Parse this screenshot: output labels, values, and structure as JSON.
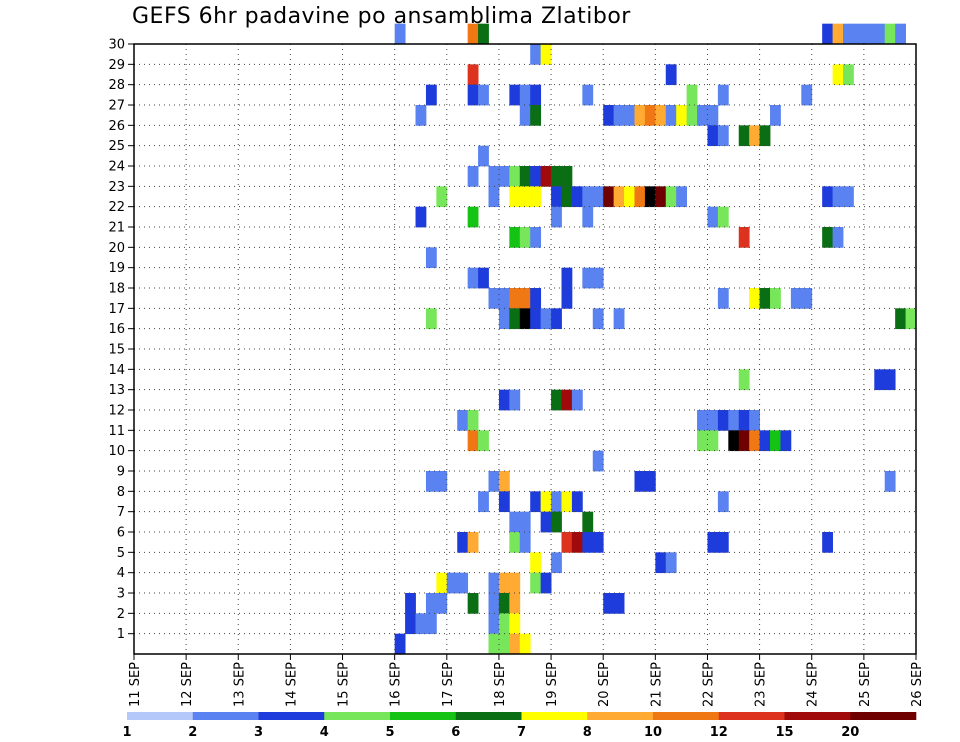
{
  "chart_data": {
    "type": "heatmap",
    "title": "GEFS 6hr padavine po ansamblima Zlatibor",
    "xlabel": "",
    "ylabel": "",
    "x_tick_labels": [
      "11 SEP",
      "12 SEP",
      "13 SEP",
      "14 SEP",
      "15 SEP",
      "16 SEP",
      "17 SEP",
      "18 SEP",
      "19 SEP",
      "20 SEP",
      "21 SEP",
      "22 SEP",
      "23 SEP",
      "24 SEP",
      "25 SEP",
      "26 SEP"
    ],
    "y_tick_labels": [
      "1",
      "2",
      "3",
      "4",
      "5",
      "6",
      "7",
      "8",
      "9",
      "10",
      "11",
      "12",
      "13",
      "14",
      "15",
      "16",
      "17",
      "18",
      "19",
      "20",
      "21",
      "22",
      "23",
      "24",
      "25",
      "26",
      "27",
      "28",
      "29",
      "30"
    ],
    "x_range_days": [
      11,
      26
    ],
    "y_range": [
      0,
      30
    ],
    "grid": true,
    "colorbar": {
      "labels": [
        "1",
        "2",
        "3",
        "4",
        "5",
        "6",
        "7",
        "8",
        "10",
        "12",
        "15",
        "20"
      ],
      "colors": [
        "#b4c8fa",
        "#5a82f0",
        "#1e3cdc",
        "#78e65a",
        "#14c314",
        "#0a6e14",
        "#ffff00",
        "#ffaa32",
        "#f07814",
        "#dc321e",
        "#a00a0a",
        "#6e0000"
      ]
    },
    "cells_comment_free": true,
    "cells": [
      [
        16.0,
        30,
        1
      ],
      [
        17.4,
        30,
        8
      ],
      [
        17.6,
        30,
        5
      ],
      [
        24.2,
        30,
        2
      ],
      [
        24.4,
        30,
        7
      ],
      [
        24.6,
        30,
        1
      ],
      [
        24.8,
        30,
        1
      ],
      [
        25.0,
        30,
        1
      ],
      [
        25.2,
        30,
        1
      ],
      [
        25.4,
        30,
        3
      ],
      [
        25.6,
        30,
        1
      ],
      [
        18.6,
        29,
        1
      ],
      [
        18.8,
        29,
        6
      ],
      [
        17.4,
        28,
        9
      ],
      [
        21.2,
        28,
        2
      ],
      [
        24.4,
        28,
        6
      ],
      [
        24.6,
        28,
        3
      ],
      [
        16.6,
        27,
        2
      ],
      [
        17.4,
        27,
        2
      ],
      [
        17.6,
        27,
        1
      ],
      [
        18.2,
        27,
        2
      ],
      [
        18.4,
        27,
        1
      ],
      [
        18.6,
        27,
        2
      ],
      [
        19.6,
        27,
        1
      ],
      [
        21.6,
        27,
        3
      ],
      [
        22.2,
        27,
        1
      ],
      [
        23.8,
        27,
        1
      ],
      [
        16.4,
        26,
        1
      ],
      [
        18.4,
        26,
        1
      ],
      [
        18.6,
        26,
        5
      ],
      [
        20.0,
        26,
        2
      ],
      [
        20.2,
        26,
        1
      ],
      [
        20.4,
        26,
        1
      ],
      [
        20.6,
        26,
        7
      ],
      [
        20.8,
        26,
        8
      ],
      [
        21.0,
        26,
        7
      ],
      [
        21.2,
        26,
        1
      ],
      [
        21.4,
        26,
        6
      ],
      [
        21.6,
        26,
        3
      ],
      [
        21.8,
        26,
        1
      ],
      [
        22.0,
        26,
        1
      ],
      [
        23.2,
        26,
        1
      ],
      [
        22.0,
        25,
        2
      ],
      [
        22.2,
        25,
        1
      ],
      [
        22.6,
        25,
        5
      ],
      [
        22.8,
        25,
        7
      ],
      [
        23.0,
        25,
        5
      ],
      [
        17.6,
        24,
        1
      ],
      [
        17.4,
        23,
        1
      ],
      [
        17.8,
        23,
        1
      ],
      [
        18.0,
        23,
        1
      ],
      [
        18.2,
        23,
        3
      ],
      [
        18.4,
        23,
        5
      ],
      [
        18.6,
        23,
        2
      ],
      [
        18.8,
        23,
        10
      ],
      [
        19.0,
        23,
        5
      ],
      [
        19.2,
        23,
        5
      ],
      [
        16.8,
        22,
        3
      ],
      [
        17.8,
        22,
        1
      ],
      [
        18.2,
        22,
        6
      ],
      [
        18.4,
        22,
        6
      ],
      [
        18.6,
        22,
        6
      ],
      [
        19.0,
        22,
        2
      ],
      [
        19.2,
        22,
        5
      ],
      [
        19.4,
        22,
        2
      ],
      [
        19.6,
        22,
        1
      ],
      [
        19.8,
        22,
        1
      ],
      [
        20.0,
        22,
        11
      ],
      [
        20.2,
        22,
        7
      ],
      [
        20.4,
        22,
        6
      ],
      [
        20.6,
        22,
        8
      ],
      [
        20.8,
        22,
        12
      ],
      [
        21.0,
        22,
        11
      ],
      [
        21.2,
        22,
        3
      ],
      [
        21.4,
        22,
        1
      ],
      [
        24.2,
        22,
        2
      ],
      [
        24.4,
        22,
        1
      ],
      [
        24.6,
        22,
        1
      ],
      [
        16.4,
        21,
        2
      ],
      [
        17.4,
        21,
        4
      ],
      [
        19.0,
        21,
        1
      ],
      [
        19.6,
        21,
        1
      ],
      [
        22.0,
        21,
        1
      ],
      [
        22.2,
        21,
        3
      ],
      [
        18.2,
        20,
        4
      ],
      [
        18.4,
        20,
        3
      ],
      [
        18.6,
        20,
        1
      ],
      [
        22.6,
        20,
        9
      ],
      [
        24.2,
        20,
        5
      ],
      [
        24.4,
        20,
        1
      ],
      [
        16.6,
        19,
        1
      ],
      [
        17.4,
        18,
        1
      ],
      [
        17.6,
        18,
        2
      ],
      [
        19.2,
        18,
        2
      ],
      [
        19.6,
        18,
        1
      ],
      [
        19.8,
        18,
        1
      ],
      [
        17.8,
        17,
        1
      ],
      [
        18.0,
        17,
        1
      ],
      [
        18.2,
        17,
        8
      ],
      [
        18.4,
        17,
        8
      ],
      [
        18.6,
        17,
        2
      ],
      [
        19.2,
        17,
        2
      ],
      [
        22.2,
        17,
        1
      ],
      [
        22.8,
        17,
        6
      ],
      [
        23.0,
        17,
        5
      ],
      [
        23.2,
        17,
        3
      ],
      [
        23.6,
        17,
        1
      ],
      [
        23.8,
        17,
        1
      ],
      [
        16.6,
        16,
        3
      ],
      [
        18.0,
        16,
        1
      ],
      [
        18.2,
        16,
        5
      ],
      [
        18.4,
        16,
        12
      ],
      [
        18.6,
        16,
        2
      ],
      [
        18.8,
        16,
        1
      ],
      [
        19.0,
        16,
        2
      ],
      [
        19.8,
        16,
        1
      ],
      [
        20.2,
        16,
        1
      ],
      [
        25.6,
        16,
        5
      ],
      [
        25.8,
        16,
        3
      ],
      [
        22.6,
        13,
        3
      ],
      [
        25.2,
        13,
        2
      ],
      [
        25.4,
        13,
        2
      ],
      [
        18.0,
        12,
        2
      ],
      [
        18.2,
        12,
        1
      ],
      [
        19.0,
        12,
        5
      ],
      [
        19.2,
        12,
        10
      ],
      [
        19.4,
        12,
        1
      ],
      [
        17.2,
        11,
        1
      ],
      [
        17.4,
        11,
        3
      ],
      [
        21.8,
        11,
        1
      ],
      [
        22.0,
        11,
        1
      ],
      [
        22.2,
        11,
        2
      ],
      [
        22.4,
        11,
        1
      ],
      [
        22.6,
        11,
        2
      ],
      [
        22.8,
        11,
        1
      ],
      [
        17.4,
        10,
        8
      ],
      [
        17.6,
        10,
        3
      ],
      [
        21.8,
        10,
        3
      ],
      [
        22.0,
        10,
        3
      ],
      [
        22.4,
        10,
        12
      ],
      [
        22.6,
        10,
        11
      ],
      [
        22.8,
        10,
        8
      ],
      [
        23.0,
        10,
        2
      ],
      [
        23.2,
        10,
        4
      ],
      [
        23.4,
        10,
        2
      ],
      [
        19.8,
        9,
        1
      ],
      [
        16.6,
        8,
        1
      ],
      [
        16.8,
        8,
        1
      ],
      [
        17.8,
        8,
        1
      ],
      [
        18.0,
        8,
        7
      ],
      [
        20.6,
        8,
        2
      ],
      [
        20.8,
        8,
        2
      ],
      [
        25.4,
        8,
        1
      ],
      [
        17.6,
        7,
        1
      ],
      [
        18.0,
        7,
        2
      ],
      [
        18.6,
        7,
        2
      ],
      [
        18.8,
        7,
        6
      ],
      [
        19.0,
        7,
        1
      ],
      [
        19.2,
        7,
        6
      ],
      [
        19.4,
        7,
        2
      ],
      [
        22.2,
        7,
        1
      ],
      [
        18.2,
        6,
        1
      ],
      [
        18.4,
        6,
        1
      ],
      [
        18.8,
        6,
        2
      ],
      [
        19.0,
        6,
        5
      ],
      [
        19.6,
        6,
        5
      ],
      [
        17.2,
        5,
        2
      ],
      [
        17.4,
        5,
        7
      ],
      [
        18.2,
        5,
        3
      ],
      [
        18.4,
        5,
        1
      ],
      [
        19.2,
        5,
        9
      ],
      [
        19.4,
        5,
        10
      ],
      [
        19.6,
        5,
        2
      ],
      [
        19.8,
        5,
        2
      ],
      [
        22.0,
        5,
        2
      ],
      [
        22.2,
        5,
        2
      ],
      [
        24.2,
        5,
        2
      ],
      [
        18.6,
        4,
        6
      ],
      [
        19.0,
        4,
        1
      ],
      [
        21.0,
        4,
        2
      ],
      [
        21.2,
        4,
        1
      ],
      [
        16.8,
        3,
        6
      ],
      [
        17.0,
        3,
        1
      ],
      [
        17.2,
        3,
        1
      ],
      [
        17.8,
        3,
        1
      ],
      [
        18.0,
        3,
        7
      ],
      [
        18.2,
        3,
        7
      ],
      [
        18.6,
        3,
        3
      ],
      [
        18.8,
        3,
        2
      ],
      [
        16.2,
        2,
        2
      ],
      [
        16.6,
        2,
        1
      ],
      [
        16.8,
        2,
        1
      ],
      [
        17.4,
        2,
        5
      ],
      [
        17.8,
        2,
        1
      ],
      [
        18.0,
        2,
        5
      ],
      [
        18.2,
        2,
        7
      ],
      [
        20.0,
        2,
        2
      ],
      [
        20.2,
        2,
        2
      ],
      [
        16.2,
        1,
        2
      ],
      [
        16.4,
        1,
        1
      ],
      [
        16.6,
        1,
        1
      ],
      [
        17.8,
        1,
        1
      ],
      [
        18.0,
        1,
        3
      ],
      [
        18.2,
        1,
        6
      ],
      [
        16.0,
        0,
        2
      ],
      [
        17.8,
        0,
        3
      ],
      [
        18.0,
        0,
        3
      ],
      [
        18.2,
        0,
        7
      ],
      [
        18.4,
        0,
        6
      ]
    ]
  }
}
